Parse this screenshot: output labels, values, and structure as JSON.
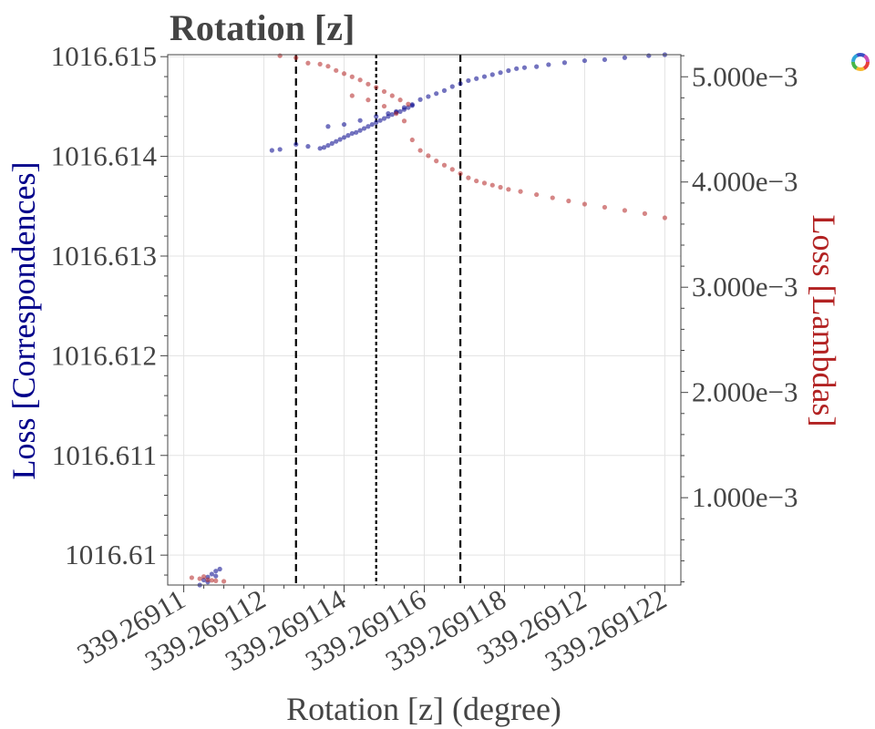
{
  "chart_data": {
    "type": "scatter",
    "title": "Rotation [z]",
    "xlabel": "Rotation [z] (degree)",
    "ylabel_left": "Loss [Correspondences]",
    "ylabel_right": "Loss [Lambdas]",
    "xlim": [
      339.2691096,
      339.2691224
    ],
    "ylim_left": [
      1016.6097,
      1016.61502
    ],
    "ylim_right": [
      0.00017,
      0.00521
    ],
    "x_ticks": [
      339.26911,
      339.269112,
      339.269114,
      339.269116,
      339.269118,
      339.26912,
      339.269122
    ],
    "x_tick_labels": [
      "339.26911",
      "339.269112",
      "339.269114",
      "339.269116",
      "339.269118",
      "339.26912",
      "339.269122"
    ],
    "y_left_ticks": [
      1016.61,
      1016.611,
      1016.612,
      1016.613,
      1016.614,
      1016.615
    ],
    "y_left_tick_labels": [
      "1016.61",
      "1016.611",
      "1016.612",
      "1016.613",
      "1016.614",
      "1016.615"
    ],
    "y_right_ticks": [
      0.001,
      0.002,
      0.003,
      0.004,
      0.005
    ],
    "y_right_tick_labels": [
      "1.000e−3",
      "2.000e−3",
      "3.000e−3",
      "4.000e−3",
      "5.000e−3"
    ],
    "vlines": [
      {
        "x": 339.2691128,
        "style": "dashed"
      },
      {
        "x": 339.2691148,
        "style": "dotted"
      },
      {
        "x": 339.2691169,
        "style": "dashed"
      }
    ],
    "grid": true,
    "series": [
      {
        "axis": "left",
        "color": "#00008b",
        "points": [
          [
            339.2691104,
            1016.6097
          ],
          [
            339.2691105,
            1016.60975
          ],
          [
            339.2691106,
            1016.60978
          ],
          [
            339.2691107,
            1016.60981
          ],
          [
            339.2691108,
            1016.60984
          ],
          [
            339.2691109,
            1016.60986
          ],
          [
            339.2691106,
            1016.60973
          ],
          [
            339.2691108,
            1016.60979
          ],
          [
            339.2691122,
            1016.61406
          ],
          [
            339.2691124,
            1016.61407
          ],
          [
            339.2691128,
            1016.61412
          ],
          [
            339.2691131,
            1016.6141
          ],
          [
            339.2691134,
            1016.61408
          ],
          [
            339.2691135,
            1016.61409
          ],
          [
            339.2691136,
            1016.61411
          ],
          [
            339.2691137,
            1016.61413
          ],
          [
            339.2691138,
            1016.61415
          ],
          [
            339.2691139,
            1016.61417
          ],
          [
            339.269114,
            1016.61419
          ],
          [
            339.2691141,
            1016.61421
          ],
          [
            339.2691142,
            1016.61423
          ],
          [
            339.2691143,
            1016.61424
          ],
          [
            339.2691144,
            1016.61426
          ],
          [
            339.2691145,
            1016.61428
          ],
          [
            339.2691146,
            1016.6143
          ],
          [
            339.2691147,
            1016.61432
          ],
          [
            339.2691148,
            1016.61434
          ],
          [
            339.2691149,
            1016.61436
          ],
          [
            339.269115,
            1016.61438
          ],
          [
            339.2691151,
            1016.6144
          ],
          [
            339.2691152,
            1016.61442
          ],
          [
            339.2691153,
            1016.61444
          ],
          [
            339.2691154,
            1016.61445
          ],
          [
            339.2691155,
            1016.61447
          ],
          [
            339.2691156,
            1016.61449
          ],
          [
            339.2691157,
            1016.61451
          ],
          [
            339.2691136,
            1016.6143
          ],
          [
            339.269114,
            1016.61432
          ],
          [
            339.2691144,
            1016.61436
          ],
          [
            339.2691148,
            1016.6144
          ],
          [
            339.2691151,
            1016.61443
          ],
          [
            339.2691153,
            1016.61445
          ],
          [
            339.2691155,
            1016.61449
          ],
          [
            339.2691157,
            1016.61452
          ],
          [
            339.2691159,
            1016.61457
          ],
          [
            339.2691161,
            1016.6146
          ],
          [
            339.2691163,
            1016.61463
          ],
          [
            339.2691165,
            1016.61466
          ],
          [
            339.2691167,
            1016.6147
          ],
          [
            339.2691169,
            1016.61473
          ],
          [
            339.2691171,
            1016.61476
          ],
          [
            339.2691173,
            1016.61478
          ],
          [
            339.2691175,
            1016.6148
          ],
          [
            339.2691177,
            1016.61482
          ],
          [
            339.2691179,
            1016.61484
          ],
          [
            339.2691181,
            1016.61486
          ],
          [
            339.2691183,
            1016.61488
          ],
          [
            339.2691185,
            1016.61489
          ],
          [
            339.2691188,
            1016.6149
          ],
          [
            339.2691191,
            1016.61492
          ],
          [
            339.2691195,
            1016.61494
          ],
          [
            339.26912,
            1016.61496
          ],
          [
            339.2691205,
            1016.61497
          ],
          [
            339.269121,
            1016.61499
          ],
          [
            339.2691216,
            1016.61501
          ],
          [
            339.269122,
            1016.61502
          ]
        ]
      },
      {
        "axis": "right",
        "color": "#b22222",
        "points": [
          [
            339.2691102,
            0.00024
          ],
          [
            339.2691104,
            0.00023
          ],
          [
            339.2691106,
            0.00022
          ],
          [
            339.2691108,
            0.00021
          ],
          [
            339.269111,
            0.000205
          ],
          [
            339.2691105,
            0.00025
          ],
          [
            339.2691107,
            0.000215
          ],
          [
            339.2691124,
            0.0052
          ],
          [
            339.2691128,
            0.00518
          ],
          [
            339.2691131,
            0.00513
          ],
          [
            339.2691134,
            0.00512
          ],
          [
            339.2691136,
            0.0051
          ],
          [
            339.2691138,
            0.00506
          ],
          [
            339.269114,
            0.00503
          ],
          [
            339.2691142,
            0.005
          ],
          [
            339.2691144,
            0.00497
          ],
          [
            339.2691146,
            0.00493
          ],
          [
            339.2691148,
            0.0049
          ],
          [
            339.269115,
            0.00486
          ],
          [
            339.2691152,
            0.00482
          ],
          [
            339.2691154,
            0.00478
          ],
          [
            339.2691156,
            0.00474
          ],
          [
            339.2691142,
            0.00482
          ],
          [
            339.2691146,
            0.00478
          ],
          [
            339.269115,
            0.00472
          ],
          [
            339.2691153,
            0.00465
          ],
          [
            339.2691155,
            0.00458
          ],
          [
            339.2691157,
            0.0044
          ],
          [
            339.2691159,
            0.0043
          ],
          [
            339.2691161,
            0.00425
          ],
          [
            339.2691163,
            0.0042
          ],
          [
            339.2691165,
            0.00416
          ],
          [
            339.2691167,
            0.00412
          ],
          [
            339.2691169,
            0.00408
          ],
          [
            339.2691171,
            0.00404
          ],
          [
            339.2691173,
            0.00401
          ],
          [
            339.2691175,
            0.00399
          ],
          [
            339.2691177,
            0.00397
          ],
          [
            339.2691179,
            0.00395
          ],
          [
            339.2691181,
            0.00393
          ],
          [
            339.2691184,
            0.00391
          ],
          [
            339.2691188,
            0.00388
          ],
          [
            339.2691192,
            0.00385
          ],
          [
            339.2691196,
            0.00382
          ],
          [
            339.26912,
            0.00379
          ],
          [
            339.2691205,
            0.00376
          ],
          [
            339.269121,
            0.00373
          ],
          [
            339.2691215,
            0.0037
          ],
          [
            339.269122,
            0.00366
          ]
        ]
      }
    ]
  }
}
